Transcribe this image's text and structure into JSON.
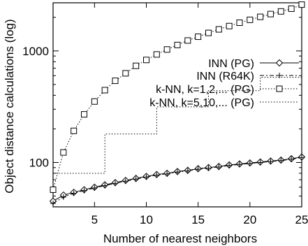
{
  "chart_data": {
    "type": "line",
    "xlabel": "Number of nearest neighbors",
    "ylabel": "Object distance calculations (log)",
    "xlim": [
      1,
      25
    ],
    "ylim": [
      40,
      2700
    ],
    "y_scale": "log",
    "grid": false,
    "legend_position": "top-right",
    "x_ticks": [
      5,
      10,
      15,
      20,
      25
    ],
    "y_ticks": [
      100,
      1000
    ],
    "x_tick_labels": [
      "5",
      "10",
      "15",
      "20",
      "25"
    ],
    "y_tick_labels": [
      "100",
      "1000"
    ],
    "series": [
      {
        "name": "INN (PG)",
        "style": "solid-diamond",
        "x": [
          1,
          2,
          3,
          4,
          5,
          6,
          7,
          8,
          9,
          10,
          11,
          12,
          13,
          14,
          15,
          16,
          17,
          18,
          19,
          20,
          21,
          22,
          23,
          24,
          25
        ],
        "y": [
          45,
          51,
          54,
          57,
          60,
          63,
          66,
          69,
          72,
          75,
          78,
          80,
          83,
          85,
          88,
          90,
          92,
          95,
          97,
          99,
          101,
          103,
          105,
          108,
          112
        ]
      },
      {
        "name": "INN (R64K)",
        "style": "dashdot-plus",
        "x": [
          1,
          2,
          3,
          4,
          5,
          6,
          7,
          8,
          9,
          10,
          11,
          12,
          13,
          14,
          15,
          16,
          17,
          18,
          19,
          20,
          21,
          22,
          23,
          24,
          25
        ],
        "y": [
          43,
          49,
          53,
          56,
          59,
          62,
          65,
          68,
          71,
          74,
          77,
          79,
          82,
          84,
          87,
          89,
          91,
          94,
          96,
          98,
          100,
          102,
          104,
          107,
          111
        ]
      },
      {
        "name": "k-NN, k=1,2,... (PG)",
        "style": "dotted-square",
        "x": [
          1,
          2,
          3,
          4,
          5,
          6,
          7,
          8,
          9,
          10,
          11,
          12,
          13,
          14,
          15,
          16,
          17,
          18,
          19,
          20,
          21,
          22,
          23,
          24,
          25
        ],
        "y": [
          57,
          123,
          192,
          270,
          352,
          445,
          540,
          630,
          735,
          830,
          930,
          1030,
          1130,
          1240,
          1340,
          1450,
          1560,
          1670,
          1790,
          1900,
          2020,
          2140,
          2260,
          2390,
          2600
        ]
      },
      {
        "name": "k-NN, k=5,10,... (PG)",
        "style": "dotted-step",
        "x": [
          1,
          6,
          11,
          16,
          21,
          25
        ],
        "y": [
          80,
          180,
          315,
          440,
          580,
          580
        ]
      }
    ]
  }
}
